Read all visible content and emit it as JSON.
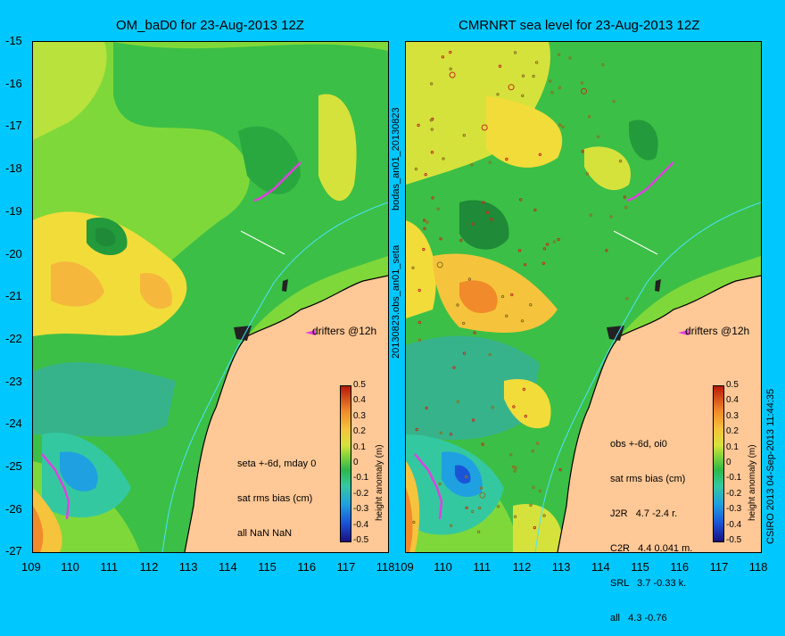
{
  "left_map": {
    "title": "OM_baD0 for 23-Aug-2013 12Z",
    "drifters": "drifters @12h",
    "stats": [
      "seta +-6d, mday 0",
      "sat rms bias (cm)",
      "all NaN NaN"
    ]
  },
  "right_map": {
    "title": "CMRNRT sea level  for 23-Aug-2013 12Z",
    "drifters": "drifters @12h",
    "stats": [
      "obs +-6d, oi0",
      "sat rms bias (cm)",
      "J2R   4.7 -2.4 r.",
      "C2R   4.4 0.041 m.",
      "SRL   3.7 -0.33 k.",
      "all   4.3 -0.76"
    ]
  },
  "middle_labels": {
    "upper": "bodas_an01_20130823",
    "lower": "20130823.obs_an01_seta"
  },
  "right_edge_label": "CSIRO 2013   04-Sep-2013 11:44:35",
  "latitudes": [
    "-15",
    "-16",
    "-17",
    "-18",
    "-19",
    "-20",
    "-21",
    "-22",
    "-23",
    "-24",
    "-25",
    "-26",
    "-27"
  ],
  "longitudes": [
    "109",
    "110",
    "111",
    "112",
    "113",
    "114",
    "115",
    "116",
    "117",
    "118"
  ],
  "colorbar": {
    "label": "height anomaly (m)",
    "ticks": [
      "0.5",
      "0.4",
      "0.3",
      "0.2",
      "0.1",
      "0",
      "-0.1",
      "-0.2",
      "-0.3",
      "-0.4",
      "-0.5"
    ],
    "range": [
      -0.5,
      0.5
    ]
  },
  "colors": {
    "background": "#00c8ff",
    "land": "#ffc896",
    "sea_green": "#3cbf46",
    "drifter_track": "#e040e0"
  }
}
